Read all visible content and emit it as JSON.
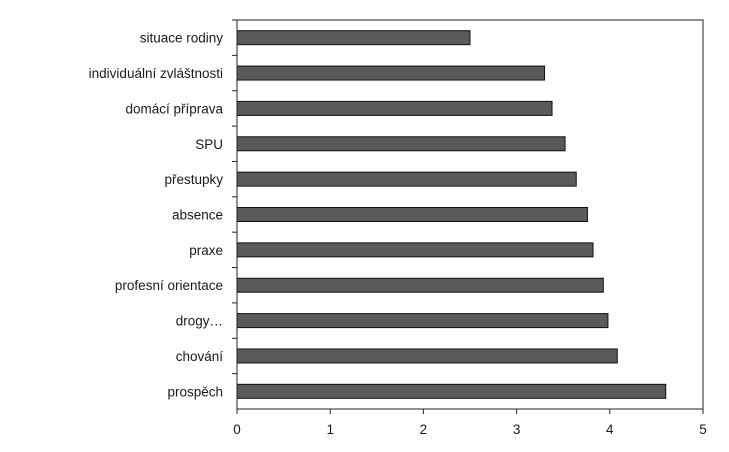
{
  "chart_data": {
    "type": "bar",
    "orientation": "horizontal",
    "title": "",
    "xlabel": "",
    "ylabel": "",
    "categories": [
      "situace rodiny",
      "individuální zvláštnosti",
      "domácí příprava",
      "SPU",
      "přestupky",
      "absence",
      "praxe",
      "profesní orientace",
      "drogy…",
      "chování",
      "prospěch"
    ],
    "values": [
      2.5,
      3.3,
      3.38,
      3.52,
      3.64,
      3.76,
      3.82,
      3.93,
      3.98,
      4.08,
      4.6
    ],
    "xlim": [
      0,
      5
    ],
    "xticks": [
      "0",
      "1",
      "2",
      "3",
      "4",
      "5"
    ],
    "grid": false,
    "legend": "none",
    "colors": {
      "bar": "#5a5a5a",
      "bar_edge": "#111111",
      "axis": "#222222"
    }
  }
}
